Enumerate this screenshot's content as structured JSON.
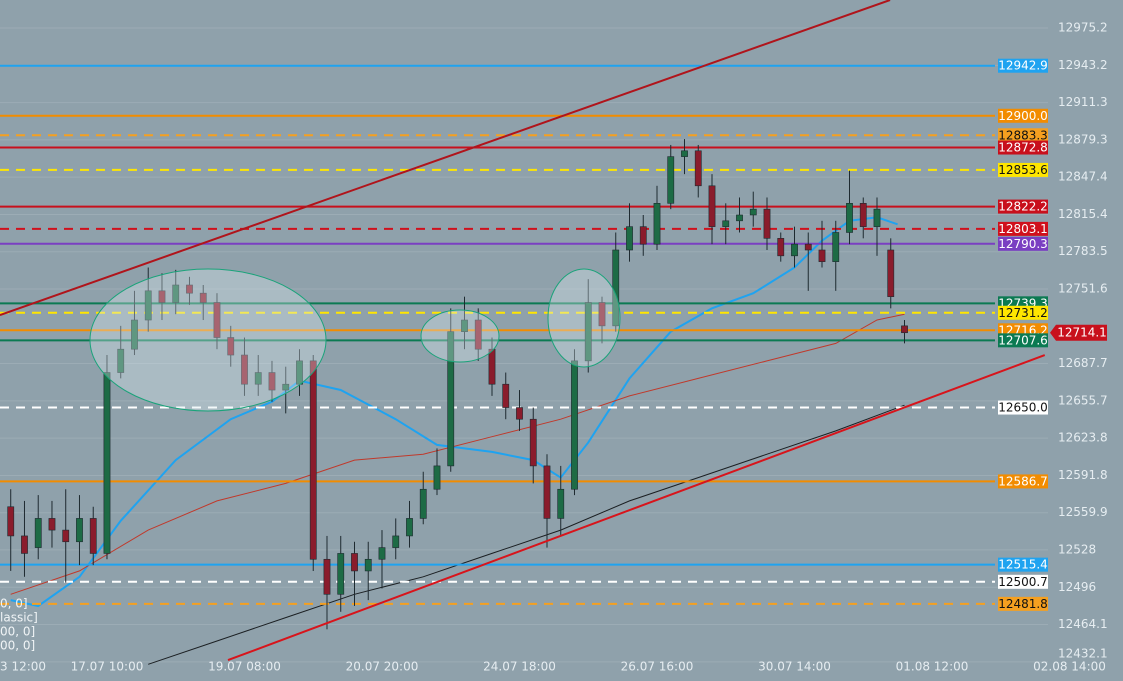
{
  "chart_data": {
    "type": "candlestick",
    "background": "#8fa1ab",
    "up_color": "#1d6b45",
    "down_color": "#8a1c2c",
    "wick_color": "#1e2a30",
    "grid": true,
    "ylim": [
      12415.7,
      12999.2
    ],
    "yticks": [
      12975.2,
      12943.2,
      12911.3,
      12879.3,
      12847.4,
      12815.4,
      12783.5,
      12751.6,
      12687.7,
      12655.7,
      12623.8,
      12591.8,
      12559.9,
      12528.0,
      12496.0,
      12464.1,
      12432.1
    ],
    "xlim": [
      -0.78,
      80.89
    ],
    "xticks": [
      {
        "value": -3,
        "label": "3 12:00"
      },
      {
        "value": 7,
        "label": "17.07 10:00"
      },
      {
        "value": 17,
        "label": "19.07 08:00"
      },
      {
        "value": 27,
        "label": "20.07 20:00"
      },
      {
        "value": 37,
        "label": "24.07 18:00"
      },
      {
        "value": 47,
        "label": "26.07 16:00"
      },
      {
        "value": 57,
        "label": "30.07 14:00"
      },
      {
        "value": 67,
        "label": "01.08 12:00"
      },
      {
        "value": 77,
        "label": "02.08 14:00"
      }
    ],
    "open": [
      12565,
      12540,
      12530,
      12555,
      12545,
      12535,
      12555,
      12525,
      12680,
      12700,
      12725,
      12750,
      12740,
      12755,
      12748,
      12740,
      12710,
      12695,
      12670,
      12680,
      12665,
      12670,
      12690,
      12520,
      12490,
      12525,
      12510,
      12520,
      12530,
      12540,
      12555,
      12580,
      12600,
      12715,
      12725,
      12700,
      12670,
      12650,
      12640,
      12600,
      12555,
      12580,
      12690,
      12740,
      12720,
      12785,
      12805,
      12790,
      12825,
      12865,
      12870,
      12840,
      12805,
      12810,
      12815,
      12820,
      12795,
      12780,
      12790,
      12785,
      12775,
      12800,
      12825,
      12805,
      12785,
      12720
    ],
    "high": [
      12580,
      12570,
      12575,
      12570,
      12580,
      12575,
      12565,
      12695,
      12720,
      12750,
      12770,
      12765,
      12768,
      12762,
      12755,
      12748,
      12720,
      12710,
      12695,
      12690,
      12685,
      12700,
      12695,
      12540,
      12540,
      12535,
      12535,
      12545,
      12555,
      12570,
      12595,
      12615,
      12735,
      12745,
      12735,
      12710,
      12680,
      12665,
      12650,
      12610,
      12600,
      12700,
      12760,
      12745,
      12800,
      12825,
      12815,
      12840,
      12875,
      12880,
      12875,
      12850,
      12825,
      12830,
      12835,
      12830,
      12800,
      12805,
      12800,
      12810,
      12810,
      12853,
      12830,
      12830,
      12795,
      12725
    ],
    "low": [
      12510,
      12505,
      12520,
      12530,
      12500,
      12515,
      12515,
      12520,
      12675,
      12695,
      12715,
      12725,
      12730,
      12738,
      12725,
      12700,
      12685,
      12660,
      12660,
      12655,
      12645,
      12660,
      12510,
      12460,
      12475,
      12480,
      12485,
      12495,
      12520,
      12530,
      12550,
      12575,
      12595,
      12700,
      12690,
      12660,
      12640,
      12630,
      12585,
      12530,
      12540,
      12575,
      12680,
      12705,
      12715,
      12775,
      12780,
      12785,
      12820,
      12850,
      12830,
      12790,
      12790,
      12800,
      12805,
      12785,
      12775,
      12770,
      12750,
      12770,
      12750,
      12790,
      12795,
      12780,
      12735,
      12705
    ],
    "close": [
      12540,
      12525,
      12555,
      12545,
      12535,
      12555,
      12525,
      12680,
      12700,
      12725,
      12750,
      12740,
      12755,
      12748,
      12740,
      12710,
      12695,
      12670,
      12680,
      12665,
      12670,
      12690,
      12520,
      12490,
      12525,
      12510,
      12520,
      12530,
      12540,
      12555,
      12580,
      12600,
      12715,
      12725,
      12700,
      12670,
      12650,
      12640,
      12600,
      12555,
      12580,
      12690,
      12740,
      12720,
      12785,
      12805,
      12790,
      12825,
      12865,
      12870,
      12840,
      12805,
      12810,
      12815,
      12820,
      12795,
      12780,
      12790,
      12785,
      12775,
      12800,
      12825,
      12805,
      12820,
      12745,
      12714.1
    ],
    "moving_averages": [
      {
        "color": "#1fa3f0",
        "width": 2,
        "x": [
          0,
          2,
          5,
          8,
          12,
          16,
          19,
          21,
          24,
          28,
          31,
          35,
          38,
          40,
          42,
          45,
          48,
          51,
          54,
          57,
          59,
          61,
          63,
          64.5
        ],
        "values": [
          12485,
          12480,
          12505,
          12553,
          12605,
          12640,
          12655,
          12673,
          12665,
          12640,
          12618,
          12612,
          12605,
          12590,
          12620,
          12675,
          12715,
          12735,
          12748,
          12770,
          12793,
          12810,
          12813,
          12807
        ]
      },
      {
        "color": "#c0392b",
        "width": 1,
        "x": [
          0,
          5,
          10,
          15,
          20,
          25,
          30,
          35,
          40,
          45,
          50,
          55,
          60,
          63,
          65
        ],
        "values": [
          12490,
          12510,
          12545,
          12570,
          12585,
          12605,
          12610,
          12625,
          12640,
          12660,
          12675,
          12690,
          12705,
          12725,
          12730
        ]
      },
      {
        "color": "#1b1f22",
        "width": 1,
        "x": [
          10,
          15,
          20,
          25,
          30,
          35,
          40,
          45,
          50,
          55,
          60,
          65
        ],
        "values": [
          12430,
          12450,
          12470,
          12490,
          12505,
          12525,
          12545,
          12570,
          12590,
          12610,
          12630,
          12652
        ]
      }
    ],
    "trendlines": [
      {
        "color": "#b0141b",
        "x": [
          -0.78,
          63.95
        ],
        "values": [
          12729.2,
          12999.2
        ]
      },
      {
        "color": "#d8141b",
        "x": [
          15.8,
          75.2
        ],
        "values": [
          12433.6,
          12695.0
        ]
      }
    ],
    "levels": [
      {
        "value": 12942.9,
        "label": "12942.9",
        "color": "#1fa3f0",
        "dash": false
      },
      {
        "value": 12900.0,
        "label": "12900.0",
        "color": "#f28c00",
        "dash": false
      },
      {
        "value": 12883.3,
        "label": "12883.3",
        "color": "#f5a020",
        "dash": true
      },
      {
        "value": 12872.8,
        "label": "12872.8",
        "color": "#c8101c",
        "dash": false
      },
      {
        "value": 12853.6,
        "label": "12853.6",
        "color": "#ffe600",
        "dash": true
      },
      {
        "value": 12822.2,
        "label": "12822.2",
        "color": "#c8101c",
        "dash": false
      },
      {
        "value": 12803.1,
        "label": "12803.1",
        "color": "#d0101c",
        "dash": true
      },
      {
        "value": 12790.3,
        "label": "12790.3",
        "color": "#7a3fc2",
        "dash": false
      },
      {
        "value": 12739.3,
        "label": "12739.3",
        "color": "#0b7a52",
        "dash": false
      },
      {
        "value": 12731.2,
        "label": "12731.2",
        "color": "#ffe600",
        "dash": true
      },
      {
        "value": 12716.2,
        "label": "12716.2",
        "color": "#f28c00",
        "dash": false
      },
      {
        "value": 12707.6,
        "label": "12707.6",
        "color": "#0b7a52",
        "dash": false
      },
      {
        "value": 12650.0,
        "label": "12650.0",
        "color": "#ffffff",
        "dash": true
      },
      {
        "value": 12586.7,
        "label": "12586.7",
        "color": "#f28c00",
        "dash": false
      },
      {
        "value": 12515.4,
        "label": "12515.4",
        "color": "#1fa3f0",
        "dash": false
      },
      {
        "value": 12500.7,
        "label": "12500.7",
        "color": "#ffffff",
        "dash": true
      },
      {
        "value": 12481.8,
        "label": "12481.8",
        "color": "#f5a020",
        "dash": true
      }
    ],
    "current_price": {
      "value": 12714.1,
      "label": "12714.1",
      "color": "#c8101c"
    },
    "indicator_fragments": [
      "0, 0]",
      "lassic]",
      "00, 0]",
      "00, 0]"
    ]
  }
}
